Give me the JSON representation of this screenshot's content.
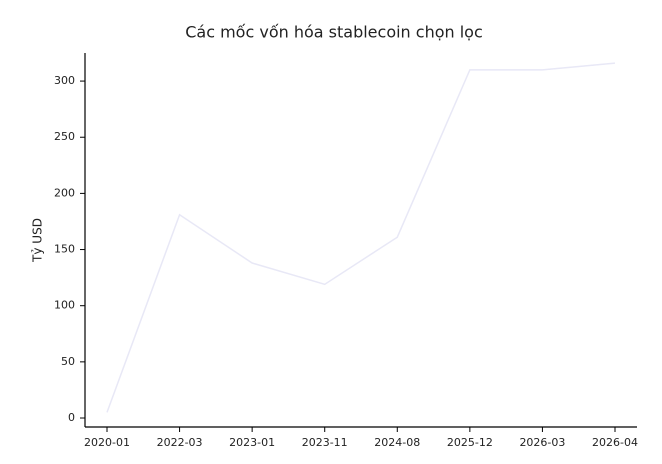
{
  "chart_data": {
    "type": "line",
    "title": "Các mốc vốn hóa stablecoin chọn lọc",
    "y_label": "Tỷ USD",
    "categories": [
      "2020-01",
      "2022-03",
      "2023-01",
      "2023-11",
      "2024-08",
      "2025-12",
      "2026-03",
      "2026-04"
    ],
    "series": [
      {
        "values": [
          5,
          181,
          138,
          119,
          161,
          310,
          310,
          316
        ],
        "color": "#e8e8f6"
      }
    ],
    "ylim": [
      -8,
      325
    ],
    "yticks": [
      0,
      50,
      100,
      150,
      200,
      250,
      300
    ]
  }
}
